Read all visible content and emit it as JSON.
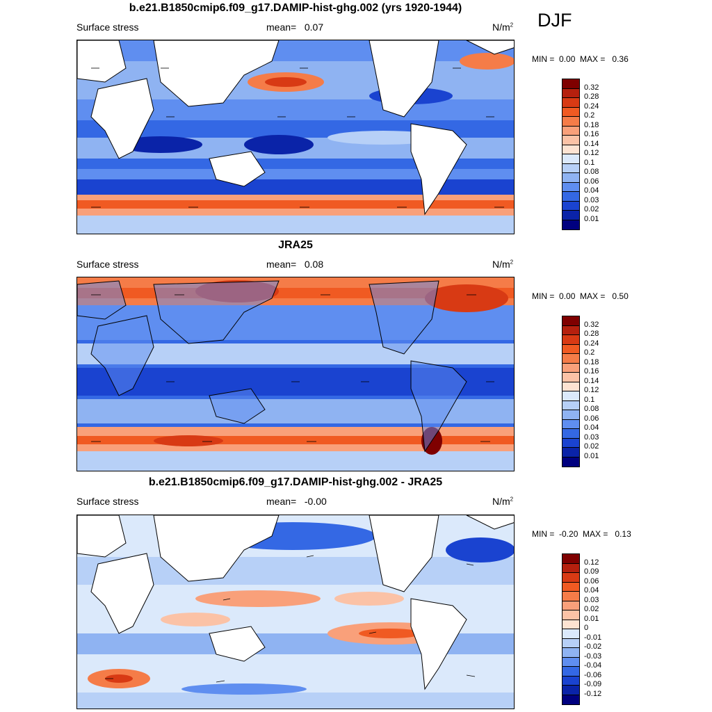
{
  "season": "DJF",
  "panels": [
    {
      "title": "b.e21.B1850cmip6.f09_g17.DAMIP-hist-ghg.002 (yrs 1920-1944)",
      "variable": "Surface stress",
      "mean_label": "mean=",
      "mean_value": "0.07",
      "units": "N/m",
      "units_sup": "2",
      "min_label": "MIN =",
      "min_value": "0.00",
      "max_label": "MAX =",
      "max_value": "0.36",
      "colorbar_labels": [
        "0.32",
        "0.28",
        "0.24",
        "0.2",
        "0.18",
        "0.16",
        "0.14",
        "0.12",
        "0.1",
        "0.08",
        "0.06",
        "0.04",
        "0.03",
        "0.02",
        "0.01"
      ]
    },
    {
      "title": "JRA25",
      "variable": "Surface stress",
      "mean_label": "mean=",
      "mean_value": "0.08",
      "units": "N/m",
      "units_sup": "2",
      "min_label": "MIN =",
      "min_value": "0.00",
      "max_label": "MAX =",
      "max_value": "0.50",
      "colorbar_labels": [
        "0.32",
        "0.28",
        "0.24",
        "0.2",
        "0.18",
        "0.16",
        "0.14",
        "0.12",
        "0.1",
        "0.08",
        "0.06",
        "0.04",
        "0.03",
        "0.02",
        "0.01"
      ]
    },
    {
      "title": "b.e21.B1850cmip6.f09_g17.DAMIP-hist-ghg.002 - JRA25",
      "variable": "Surface stress",
      "mean_label": "mean=",
      "mean_value": "-0.00",
      "units": "N/m",
      "units_sup": "2",
      "min_label": "MIN =",
      "min_value": "-0.20",
      "max_label": "MAX =",
      "max_value": "0.13",
      "colorbar_labels": [
        "0.12",
        "0.09",
        "0.06",
        "0.04",
        "0.03",
        "0.02",
        "0.01",
        "0",
        "-0.01",
        "-0.02",
        "-0.03",
        "-0.04",
        "-0.06",
        "-0.09",
        "-0.12"
      ]
    }
  ],
  "colors": {
    "scale": [
      "#7f0000",
      "#b5200e",
      "#d83a14",
      "#f05a22",
      "#f57c48",
      "#f9a07a",
      "#fbc2a6",
      "#fde3d2",
      "#dbe9fb",
      "#b7d0f7",
      "#8fb3f2",
      "#5f8ef0",
      "#3468e4",
      "#1a43d0",
      "#0a23a8",
      "#00007f"
    ],
    "land": "#ffffff",
    "coast": "#000000",
    "arrow": "#000000"
  }
}
